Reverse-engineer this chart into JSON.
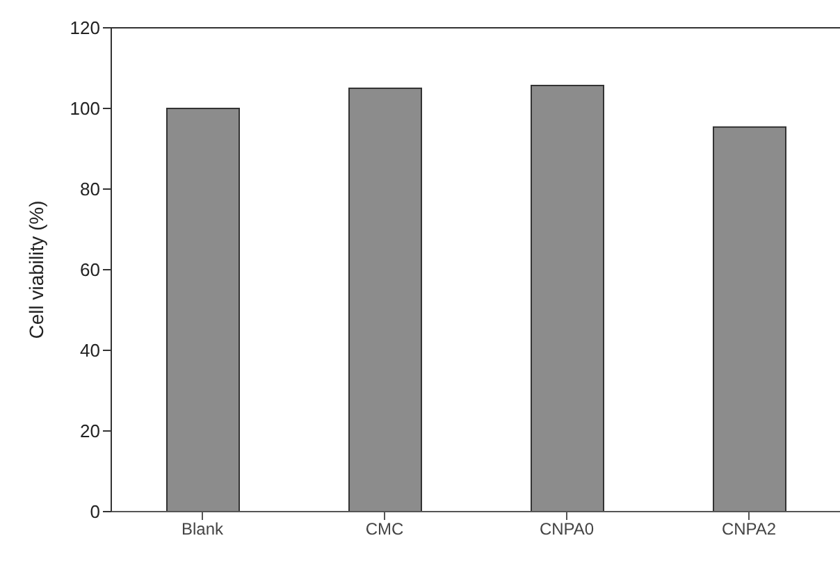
{
  "chart_data": {
    "type": "bar",
    "ylabel": "Cell viability (%)",
    "categories": [
      "Blank",
      "CMC",
      "CNPA0",
      "CNPA2"
    ],
    "values": [
      100,
      105,
      105.7,
      95.4
    ],
    "color": "#8c8c8c",
    "ylim": [
      0,
      120
    ],
    "yticks": [
      0,
      20,
      40,
      60,
      80,
      100,
      120
    ],
    "grid": false
  }
}
